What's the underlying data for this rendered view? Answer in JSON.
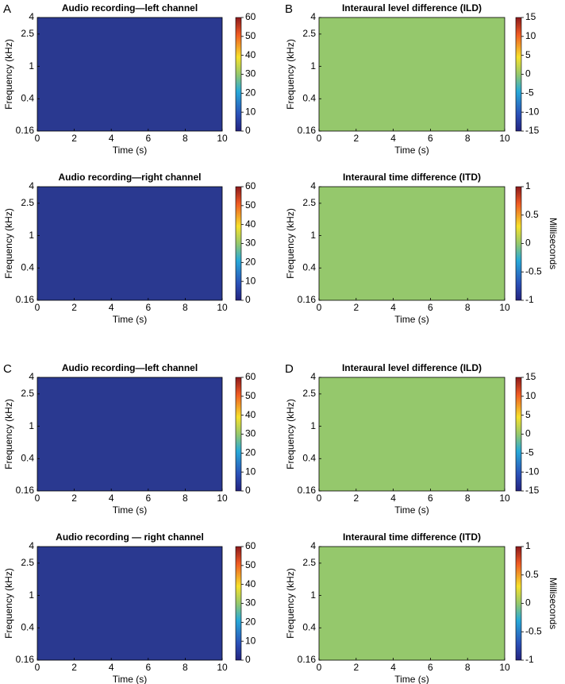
{
  "chart_data": [
    {
      "type": "spectrogram",
      "panel": "A",
      "title": "Audio recording—left channel",
      "xlabel": "Time (s)",
      "ylabel": "Frequency (kHz)",
      "xlim": [
        0,
        10
      ],
      "xticks": [
        0,
        2,
        4,
        6,
        8,
        10
      ],
      "ylim": [
        0.16,
        4
      ],
      "yticks": [
        0.16,
        0.4,
        1,
        2.5,
        4
      ],
      "yscale": "log",
      "background": "#2a3990",
      "clim": [
        0,
        60
      ],
      "cticks": [
        0,
        10,
        20,
        30,
        40,
        50,
        60
      ]
    },
    {
      "type": "spectrogram",
      "panel": "B",
      "title": "Interaural level difference (ILD)",
      "xlabel": "Time (s)",
      "ylabel": "Frequency (kHz)",
      "xlim": [
        0,
        10
      ],
      "xticks": [
        0,
        2,
        4,
        6,
        8,
        10
      ],
      "ylim": [
        0.16,
        4
      ],
      "yticks": [
        0.16,
        0.4,
        1,
        2.5,
        4
      ],
      "yscale": "log",
      "background": "#95c86c",
      "clim": [
        -15,
        15
      ],
      "cticks": [
        -15,
        -10,
        -5,
        0,
        5,
        10,
        15
      ]
    },
    {
      "type": "spectrogram",
      "title": "Audio recording—right channel",
      "xlabel": "Time (s)",
      "ylabel": "Frequency (kHz)",
      "xlim": [
        0,
        10
      ],
      "xticks": [
        0,
        2,
        4,
        6,
        8,
        10
      ],
      "ylim": [
        0.16,
        4
      ],
      "yticks": [
        0.16,
        0.4,
        1,
        2.5,
        4
      ],
      "yscale": "log",
      "background": "#2a3990",
      "clim": [
        0,
        60
      ],
      "cticks": [
        0,
        10,
        20,
        30,
        40,
        50,
        60
      ]
    },
    {
      "type": "spectrogram",
      "title": "Interaural time difference (ITD)",
      "xlabel": "Time (s)",
      "ylabel": "Frequency (kHz)",
      "xlim": [
        0,
        10
      ],
      "xticks": [
        0,
        2,
        4,
        6,
        8,
        10
      ],
      "ylim": [
        0.16,
        4
      ],
      "yticks": [
        0.16,
        0.4,
        1,
        2.5,
        4
      ],
      "yscale": "log",
      "background": "#95c86c",
      "clim": [
        -1,
        1
      ],
      "cticks": [
        -1,
        -0.5,
        0,
        0.5,
        1
      ],
      "clabel": "Milliseconds"
    },
    {
      "type": "spectrogram",
      "panel": "C",
      "title": "Audio recording—left channel",
      "xlabel": "Time (s)",
      "ylabel": "Frequency (kHz)",
      "xlim": [
        0,
        10
      ],
      "xticks": [
        0,
        2,
        4,
        6,
        8,
        10
      ],
      "ylim": [
        0.16,
        4
      ],
      "yticks": [
        0.16,
        0.4,
        1,
        2.5,
        4
      ],
      "yscale": "log",
      "background": "#2a3990",
      "clim": [
        0,
        60
      ],
      "cticks": [
        0,
        10,
        20,
        30,
        40,
        50,
        60
      ]
    },
    {
      "type": "spectrogram",
      "panel": "D",
      "title": "Interaural level difference (ILD)",
      "xlabel": "Time (s)",
      "ylabel": "Frequency (kHz)",
      "xlim": [
        0,
        10
      ],
      "xticks": [
        0,
        2,
        4,
        6,
        8,
        10
      ],
      "ylim": [
        0.16,
        4
      ],
      "yticks": [
        0.16,
        0.4,
        1,
        2.5,
        4
      ],
      "yscale": "log",
      "background": "#95c86c",
      "clim": [
        -15,
        15
      ],
      "cticks": [
        -15,
        -10,
        -5,
        0,
        5,
        10,
        15
      ]
    },
    {
      "type": "spectrogram",
      "title": "Audio recording — right channel",
      "xlabel": "Time (s)",
      "ylabel": "Frequency (kHz)",
      "xlim": [
        0,
        10
      ],
      "xticks": [
        0,
        2,
        4,
        6,
        8,
        10
      ],
      "ylim": [
        0.16,
        4
      ],
      "yticks": [
        0.16,
        0.4,
        1,
        2.5,
        4
      ],
      "yscale": "log",
      "background": "#2a3990",
      "clim": [
        0,
        60
      ],
      "cticks": [
        0,
        10,
        20,
        30,
        40,
        50,
        60
      ]
    },
    {
      "type": "spectrogram",
      "title": "Interaural time difference (ITD)",
      "xlabel": "Time (s)",
      "ylabel": "Frequency (kHz)",
      "xlim": [
        0,
        10
      ],
      "xticks": [
        0,
        2,
        4,
        6,
        8,
        10
      ],
      "ylim": [
        0.16,
        4
      ],
      "yticks": [
        0.16,
        0.4,
        1,
        2.5,
        4
      ],
      "yscale": "log",
      "background": "#95c86c",
      "clim": [
        -1,
        1
      ],
      "cticks": [
        -1,
        -0.5,
        0,
        0.5,
        1
      ],
      "clabel": "Milliseconds"
    }
  ]
}
